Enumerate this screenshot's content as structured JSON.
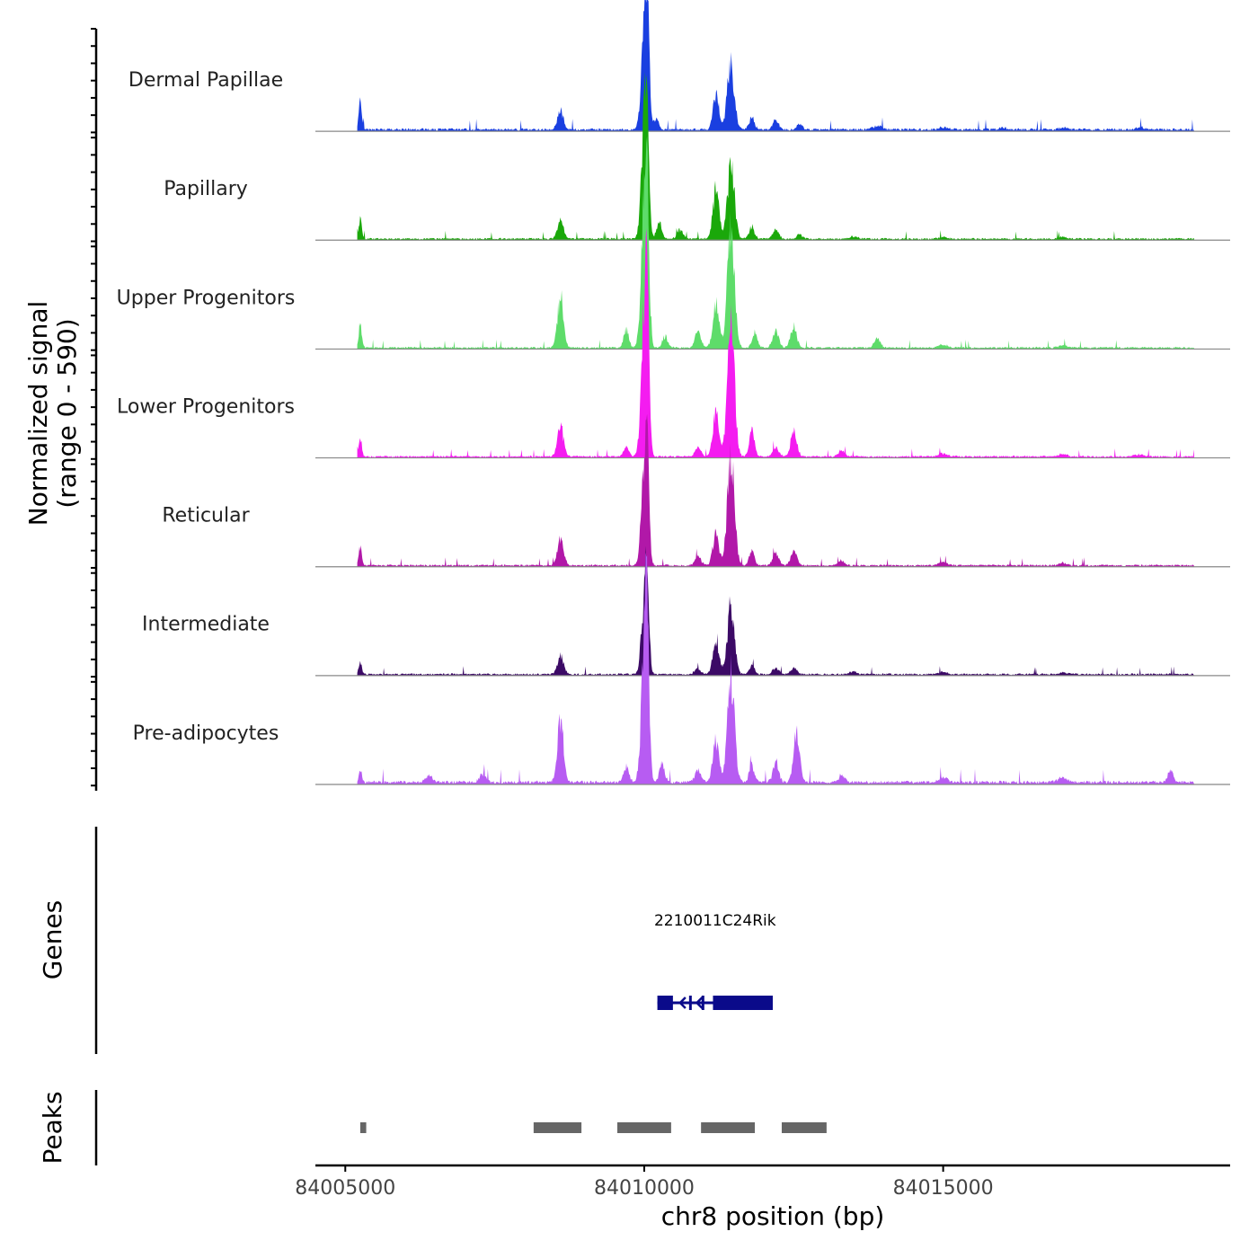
{
  "chart_data": {
    "type": "area",
    "chromosome": "chr8",
    "xlim": [
      84004500,
      84019800
    ],
    "signal_axis": {
      "title_line1": "Normalized signal",
      "title_line2": "(range 0 - 590)",
      "range": [
        0,
        590
      ]
    },
    "tracks": [
      {
        "name": "Dermal Papillae",
        "color": "#1a3fe0",
        "peaks": [
          [
            84005250,
            45,
            3
          ],
          [
            84008600,
            30,
            6
          ],
          [
            84010000,
            150,
            6
          ],
          [
            84010050,
            165,
            4
          ],
          [
            84010200,
            20,
            5
          ],
          [
            84011200,
            55,
            6
          ],
          [
            84011450,
            105,
            7
          ],
          [
            84011800,
            20,
            5
          ],
          [
            84012200,
            15,
            6
          ],
          [
            84012600,
            10,
            5
          ],
          [
            84013900,
            6,
            8
          ],
          [
            84015000,
            4,
            8
          ],
          [
            84016000,
            3,
            8
          ],
          [
            84017000,
            3,
            8
          ],
          [
            84018300,
            4,
            8
          ]
        ],
        "base": 4
      },
      {
        "name": "Papillary",
        "color": "#1aa80a",
        "peaks": [
          [
            84005250,
            35,
            3
          ],
          [
            84008600,
            30,
            6
          ],
          [
            84010000,
            170,
            6
          ],
          [
            84010050,
            150,
            4
          ],
          [
            84010250,
            30,
            5
          ],
          [
            84010600,
            15,
            6
          ],
          [
            84011200,
            80,
            6
          ],
          [
            84011450,
            120,
            7
          ],
          [
            84011800,
            20,
            5
          ],
          [
            84012200,
            15,
            6
          ],
          [
            84012600,
            8,
            5
          ],
          [
            84013500,
            4,
            8
          ],
          [
            84015000,
            3,
            8
          ],
          [
            84017000,
            3,
            8
          ]
        ],
        "base": 3
      },
      {
        "name": "Upper Progenitors",
        "color": "#5edc6a",
        "peaks": [
          [
            84005250,
            40,
            3
          ],
          [
            84008600,
            80,
            6
          ],
          [
            84009700,
            30,
            5
          ],
          [
            84010000,
            230,
            6
          ],
          [
            84010050,
            200,
            4
          ],
          [
            84010350,
            20,
            5
          ],
          [
            84010900,
            25,
            6
          ],
          [
            84011200,
            75,
            6
          ],
          [
            84011450,
            200,
            7
          ],
          [
            84011850,
            25,
            5
          ],
          [
            84012200,
            25,
            6
          ],
          [
            84012500,
            35,
            6
          ],
          [
            84013900,
            15,
            6
          ],
          [
            84015000,
            5,
            8
          ],
          [
            84017000,
            4,
            8
          ]
        ],
        "base": 3
      },
      {
        "name": "Lower Progenitors",
        "color": "#f41cf0",
        "peaks": [
          [
            84005250,
            30,
            3
          ],
          [
            84008600,
            50,
            6
          ],
          [
            84009700,
            15,
            5
          ],
          [
            84010000,
            230,
            6
          ],
          [
            84010050,
            210,
            4
          ],
          [
            84010900,
            15,
            6
          ],
          [
            84011200,
            75,
            6
          ],
          [
            84011450,
            220,
            7
          ],
          [
            84011800,
            40,
            5
          ],
          [
            84012200,
            15,
            6
          ],
          [
            84012500,
            40,
            6
          ],
          [
            84013300,
            10,
            6
          ],
          [
            84015000,
            5,
            8
          ],
          [
            84017000,
            4,
            8
          ],
          [
            84018300,
            4,
            8
          ]
        ],
        "base": 3
      },
      {
        "name": "Reticular",
        "color": "#b118a8",
        "peaks": [
          [
            84005250,
            30,
            3
          ],
          [
            84008600,
            45,
            6
          ],
          [
            84010000,
            150,
            6
          ],
          [
            84010050,
            130,
            4
          ],
          [
            84010900,
            15,
            6
          ],
          [
            84011200,
            50,
            6
          ],
          [
            84011450,
            180,
            7
          ],
          [
            84011800,
            25,
            5
          ],
          [
            84012200,
            20,
            6
          ],
          [
            84012500,
            25,
            6
          ],
          [
            84013300,
            8,
            6
          ],
          [
            84015000,
            5,
            8
          ],
          [
            84017000,
            4,
            8
          ]
        ],
        "base": 3
      },
      {
        "name": "Intermediate",
        "color": "#3c0a66",
        "peaks": [
          [
            84005250,
            20,
            3
          ],
          [
            84008600,
            30,
            6
          ],
          [
            84010000,
            110,
            6
          ],
          [
            84010050,
            120,
            4
          ],
          [
            84010900,
            10,
            6
          ],
          [
            84011200,
            55,
            6
          ],
          [
            84011450,
            115,
            7
          ],
          [
            84011800,
            15,
            5
          ],
          [
            84012200,
            10,
            6
          ],
          [
            84012500,
            10,
            6
          ],
          [
            84013500,
            5,
            6
          ],
          [
            84015000,
            4,
            8
          ],
          [
            84017000,
            3,
            8
          ]
        ],
        "base": 3
      },
      {
        "name": "Pre-adipocytes",
        "color": "#b75cf2",
        "peaks": [
          [
            84005250,
            20,
            3
          ],
          [
            84006400,
            12,
            6
          ],
          [
            84007300,
            15,
            6
          ],
          [
            84008600,
            105,
            6
          ],
          [
            84009700,
            25,
            5
          ],
          [
            84010000,
            210,
            6
          ],
          [
            84010050,
            200,
            4
          ],
          [
            84010300,
            30,
            5
          ],
          [
            84010900,
            20,
            6
          ],
          [
            84011200,
            70,
            6
          ],
          [
            84011450,
            180,
            7
          ],
          [
            84011800,
            30,
            5
          ],
          [
            84012200,
            30,
            6
          ],
          [
            84012550,
            90,
            6
          ],
          [
            84013300,
            12,
            6
          ],
          [
            84015000,
            8,
            8
          ],
          [
            84017000,
            8,
            8
          ],
          [
            84018800,
            20,
            5
          ]
        ],
        "base": 5
      }
    ],
    "genes": {
      "title": "Genes",
      "color": "#0a0a8a",
      "items": [
        {
          "name": "2210011C24Rik",
          "start": 84010220,
          "end": 84012150,
          "strand": "-",
          "exons": [
            [
              84010220,
              84010480
            ],
            [
              84010750,
              84010790
            ],
            [
              84010960,
              84011000
            ],
            [
              84011150,
              84012150
            ]
          ]
        }
      ]
    },
    "peaks_track": {
      "title": "Peaks",
      "color": "#666666",
      "regions": [
        [
          84005250,
          84005350
        ],
        [
          84008150,
          84008950
        ],
        [
          84009550,
          84010450
        ],
        [
          84010950,
          84011850
        ],
        [
          84012300,
          84013050
        ]
      ]
    },
    "x_axis": {
      "title": "chr8 position (bp)",
      "ticks": [
        84005000,
        84010000,
        84015000
      ],
      "tick_labels": [
        "84005000",
        "84010000",
        "84015000"
      ]
    }
  }
}
